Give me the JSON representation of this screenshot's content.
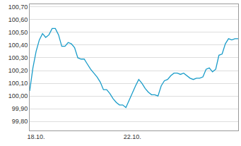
{
  "chart_data": {
    "type": "line",
    "color": "#1a9cc9",
    "grid": true,
    "categories": [
      null,
      null,
      "18.10.",
      null,
      null,
      null,
      null,
      null,
      null,
      null,
      null,
      null,
      null,
      null,
      null,
      null,
      null,
      null,
      null,
      null,
      null,
      null,
      null,
      null,
      null,
      null,
      null,
      null,
      null,
      null,
      null,
      null,
      "22.10.",
      null,
      null,
      null,
      null,
      null,
      null,
      null,
      null,
      null,
      null,
      null,
      null,
      null,
      null,
      null,
      null,
      null,
      null,
      null,
      null,
      null,
      null,
      null,
      null,
      null,
      null,
      null,
      null,
      null,
      null,
      null,
      null,
      null
    ],
    "values": [
      100.04,
      100.22,
      100.35,
      100.44,
      100.49,
      100.46,
      100.48,
      100.53,
      100.53,
      100.48,
      100.39,
      100.39,
      100.42,
      100.41,
      100.38,
      100.3,
      100.29,
      100.29,
      100.25,
      100.21,
      100.18,
      100.15,
      100.11,
      100.05,
      100.05,
      100.02,
      99.98,
      99.95,
      99.93,
      99.93,
      99.91,
      99.97,
      100.02,
      100.08,
      100.13,
      100.1,
      100.06,
      100.03,
      100.01,
      100.01,
      100.0,
      100.08,
      100.12,
      100.13,
      100.16,
      100.18,
      100.18,
      100.17,
      100.18,
      100.16,
      100.14,
      100.13,
      100.14,
      100.14,
      100.15,
      100.21,
      100.22,
      100.19,
      100.21,
      100.32,
      100.33,
      100.41,
      100.45,
      100.44,
      100.45,
      100.45
    ],
    "ylim": [
      99.73,
      100.72
    ],
    "yticks": [
      {
        "value": 99.8,
        "label": "99,80"
      },
      {
        "value": 99.9,
        "label": "99,90"
      },
      {
        "value": 100.0,
        "label": "100,00"
      },
      {
        "value": 100.1,
        "label": "100,10"
      },
      {
        "value": 100.2,
        "label": "100,20"
      },
      {
        "value": 100.3,
        "label": "100,30"
      },
      {
        "value": 100.4,
        "label": "100,40"
      },
      {
        "value": 100.5,
        "label": "100,50"
      },
      {
        "value": 100.6,
        "label": "100,60"
      },
      {
        "value": 100.7,
        "label": "100,70"
      }
    ]
  }
}
